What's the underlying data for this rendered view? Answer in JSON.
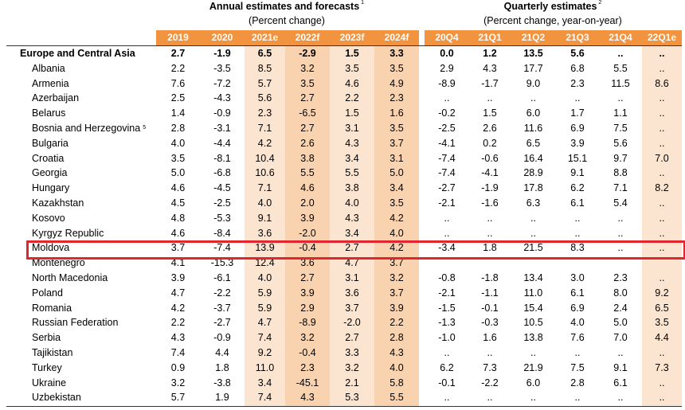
{
  "annual": {
    "title": "Annual estimates and forecasts",
    "title_note": "1",
    "subtitle": "(Percent change)",
    "columns": [
      "2019",
      "2020",
      "2021e",
      "2022f",
      "2023f",
      "2024f"
    ]
  },
  "quarterly": {
    "title": "Quarterly estimates",
    "title_note": "2",
    "subtitle": "(Percent change, year-on-year)",
    "columns": [
      "20Q4",
      "21Q1",
      "21Q2",
      "21Q3",
      "21Q4",
      "22Q1e"
    ]
  },
  "colors": {
    "header": "#f29340",
    "shade_light": "#fbe4d0",
    "shade_dark": "#f9d3b0",
    "highlight": "#e3262d"
  },
  "highlighted_row": "Moldova",
  "rows": [
    {
      "name": "Europe and Central Asia",
      "note": "",
      "region": true,
      "annual": [
        "2.7",
        "-1.9",
        "6.5",
        "-2.9",
        "1.5",
        "3.3"
      ],
      "quarterly": [
        "0.0",
        "1.2",
        "13.5",
        "5.6",
        "..",
        ".."
      ]
    },
    {
      "name": "Albania",
      "note": "",
      "annual": [
        "2.2",
        "-3.5",
        "8.5",
        "3.2",
        "3.5",
        "3.5"
      ],
      "quarterly": [
        "2.9",
        "4.3",
        "17.7",
        "6.8",
        "5.5",
        ".."
      ]
    },
    {
      "name": "Armenia",
      "note": "",
      "annual": [
        "7.6",
        "-7.2",
        "5.7",
        "3.5",
        "4.6",
        "4.9"
      ],
      "quarterly": [
        "-8.9",
        "-1.7",
        "9.0",
        "2.3",
        "11.5",
        "8.6"
      ]
    },
    {
      "name": "Azerbaijan",
      "note": "",
      "annual": [
        "2.5",
        "-4.3",
        "5.6",
        "2.7",
        "2.2",
        "2.3"
      ],
      "quarterly": [
        "..",
        "..",
        "..",
        "..",
        "..",
        ".."
      ]
    },
    {
      "name": "Belarus",
      "note": "",
      "annual": [
        "1.4",
        "-0.9",
        "2.3",
        "-6.5",
        "1.5",
        "1.6"
      ],
      "quarterly": [
        "-0.2",
        "1.5",
        "6.0",
        "1.7",
        "1.1",
        ".."
      ]
    },
    {
      "name": "Bosnia and Herzegovina",
      "note": "5",
      "annual": [
        "2.8",
        "-3.1",
        "7.1",
        "2.7",
        "3.1",
        "3.5"
      ],
      "quarterly": [
        "-2.5",
        "2.6",
        "11.6",
        "6.9",
        "7.5",
        ".."
      ]
    },
    {
      "name": "Bulgaria",
      "note": "",
      "annual": [
        "4.0",
        "-4.4",
        "4.2",
        "2.6",
        "4.3",
        "3.7"
      ],
      "quarterly": [
        "-4.1",
        "0.2",
        "6.5",
        "3.9",
        "5.6",
        ".."
      ]
    },
    {
      "name": "Croatia",
      "note": "",
      "annual": [
        "3.5",
        "-8.1",
        "10.4",
        "3.8",
        "3.4",
        "3.1"
      ],
      "quarterly": [
        "-7.4",
        "-0.6",
        "16.4",
        "15.1",
        "9.7",
        "7.0"
      ]
    },
    {
      "name": "Georgia",
      "note": "",
      "annual": [
        "5.0",
        "-6.8",
        "10.6",
        "5.5",
        "5.5",
        "5.0"
      ],
      "quarterly": [
        "-7.4",
        "-4.1",
        "28.9",
        "9.1",
        "8.8",
        ".."
      ]
    },
    {
      "name": "Hungary",
      "note": "",
      "annual": [
        "4.6",
        "-4.5",
        "7.1",
        "4.6",
        "3.8",
        "3.4"
      ],
      "quarterly": [
        "-2.7",
        "-1.9",
        "17.8",
        "6.2",
        "7.1",
        "8.2"
      ]
    },
    {
      "name": "Kazakhstan",
      "note": "",
      "annual": [
        "4.5",
        "-2.5",
        "4.0",
        "2.0",
        "4.0",
        "3.5"
      ],
      "quarterly": [
        "-2.1",
        "-1.6",
        "6.3",
        "6.1",
        "5.4",
        ".."
      ]
    },
    {
      "name": "Kosovo",
      "note": "",
      "annual": [
        "4.8",
        "-5.3",
        "9.1",
        "3.9",
        "4.3",
        "4.2"
      ],
      "quarterly": [
        "..",
        "..",
        "..",
        "..",
        "..",
        ".."
      ]
    },
    {
      "name": "Kyrgyz Republic",
      "note": "",
      "annual": [
        "4.6",
        "-8.4",
        "3.6",
        "-2.0",
        "3.4",
        "4.0"
      ],
      "quarterly": [
        "..",
        "..",
        "..",
        "..",
        "..",
        ".."
      ]
    },
    {
      "name": "Moldova",
      "note": "",
      "annual": [
        "3.7",
        "-7.4",
        "13.9",
        "-0.4",
        "2.7",
        "4.2"
      ],
      "quarterly": [
        "-3.4",
        "1.8",
        "21.5",
        "8.3",
        "..",
        ".."
      ]
    },
    {
      "name": "Montenegro",
      "note": "",
      "annual": [
        "4.1",
        "-15.3",
        "12.4",
        "3.6",
        "4.7",
        "3.7"
      ],
      "quarterly": [
        "",
        "",
        "",
        "",
        "",
        ""
      ]
    },
    {
      "name": "North Macedonia",
      "note": "",
      "annual": [
        "3.9",
        "-6.1",
        "4.0",
        "2.7",
        "3.1",
        "3.2"
      ],
      "quarterly": [
        "-0.8",
        "-1.8",
        "13.4",
        "3.0",
        "2.3",
        ".."
      ]
    },
    {
      "name": "Poland",
      "note": "",
      "annual": [
        "4.7",
        "-2.2",
        "5.9",
        "3.9",
        "3.6",
        "3.7"
      ],
      "quarterly": [
        "-2.1",
        "-1.1",
        "11.0",
        "6.1",
        "8.0",
        "9.2"
      ]
    },
    {
      "name": "Romania",
      "note": "",
      "annual": [
        "4.2",
        "-3.7",
        "5.9",
        "2.9",
        "3.7",
        "3.9"
      ],
      "quarterly": [
        "-1.5",
        "-0.1",
        "15.4",
        "6.9",
        "2.4",
        "6.5"
      ]
    },
    {
      "name": "Russian Federation",
      "note": "",
      "annual": [
        "2.2",
        "-2.7",
        "4.7",
        "-8.9",
        "-2.0",
        "2.2"
      ],
      "quarterly": [
        "-1.3",
        "-0.3",
        "10.5",
        "4.0",
        "5.0",
        "3.5"
      ]
    },
    {
      "name": "Serbia",
      "note": "",
      "annual": [
        "4.3",
        "-0.9",
        "7.4",
        "3.2",
        "2.7",
        "2.8"
      ],
      "quarterly": [
        "-1.0",
        "1.6",
        "13.8",
        "7.6",
        "7.0",
        "4.4"
      ]
    },
    {
      "name": "Tajikistan",
      "note": "",
      "annual": [
        "7.4",
        "4.4",
        "9.2",
        "-0.4",
        "3.3",
        "4.3"
      ],
      "quarterly": [
        "..",
        "..",
        "..",
        "..",
        "..",
        ".."
      ]
    },
    {
      "name": "Turkey",
      "note": "",
      "annual": [
        "0.9",
        "1.8",
        "11.0",
        "2.3",
        "3.2",
        "4.0"
      ],
      "quarterly": [
        "6.2",
        "7.3",
        "21.9",
        "7.5",
        "9.1",
        "7.3"
      ]
    },
    {
      "name": "Ukraine",
      "note": "",
      "annual": [
        "3.2",
        "-3.8",
        "3.4",
        "-45.1",
        "2.1",
        "5.8"
      ],
      "quarterly": [
        "-0.1",
        "-2.2",
        "6.0",
        "2.8",
        "6.1",
        ".."
      ]
    },
    {
      "name": "Uzbekistan",
      "note": "",
      "annual": [
        "5.7",
        "1.9",
        "7.4",
        "4.3",
        "5.3",
        "5.5"
      ],
      "quarterly": [
        "..",
        "..",
        "..",
        "..",
        "..",
        ".."
      ]
    }
  ]
}
